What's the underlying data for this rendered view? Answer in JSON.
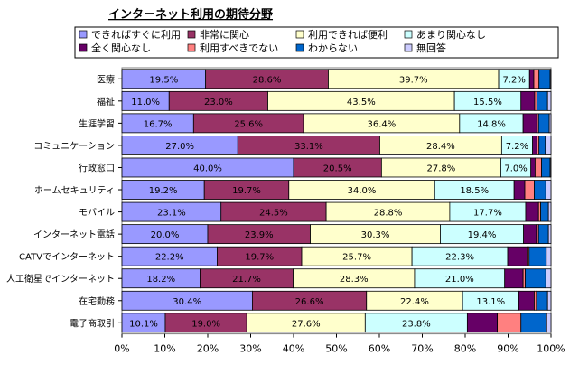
{
  "chart_data": {
    "type": "bar",
    "orientation": "horizontal",
    "stacked": true,
    "title": "インターネット利用の期待分野",
    "xlim": [
      0,
      100
    ],
    "x_tick_labels": [
      "0%",
      "10%",
      "20%",
      "30%",
      "40%",
      "50%",
      "60%",
      "70%",
      "80%",
      "90%",
      "100%"
    ],
    "legend_position": "top",
    "categories": [
      "医療",
      "福祉",
      "生涯学習",
      "コミュニケーション",
      "行政窓口",
      "ホームセキュリティ",
      "モバイル",
      "インターネット電話",
      "CATVでインターネット",
      "人工衛星でインターネット",
      "在宅勤務",
      "電子商取引"
    ],
    "series": [
      {
        "name": "できればすぐに利用",
        "color": "#9999ff",
        "values": [
          19.5,
          11.0,
          16.7,
          27.0,
          40.0,
          19.2,
          23.1,
          20.0,
          22.2,
          18.2,
          30.4,
          10.1
        ]
      },
      {
        "name": "非常に関心",
        "color": "#993366",
        "values": [
          28.6,
          23.0,
          25.6,
          33.1,
          20.5,
          19.7,
          24.5,
          23.9,
          19.7,
          21.7,
          26.6,
          19.0
        ]
      },
      {
        "name": "利用できれば便利",
        "color": "#ffffcc",
        "values": [
          39.7,
          43.5,
          36.4,
          28.4,
          27.8,
          34.0,
          28.8,
          30.3,
          25.7,
          28.3,
          22.4,
          27.6
        ]
      },
      {
        "name": "あまり関心なし",
        "color": "#ccffff",
        "values": [
          7.2,
          15.5,
          14.8,
          7.2,
          7.0,
          18.5,
          17.7,
          19.4,
          22.3,
          21.0,
          13.1,
          23.8
        ]
      },
      {
        "name": "全く関心なし",
        "color": "#660066",
        "values": [
          1.0,
          3.2,
          3.2,
          1.0,
          1.0,
          2.5,
          3.0,
          3.0,
          4.5,
          4.3,
          3.6,
          7.0
        ]
      },
      {
        "name": "利用すべきでない",
        "color": "#ff8080",
        "values": [
          1.2,
          0.5,
          0.4,
          0.5,
          1.5,
          2.2,
          0.5,
          0.5,
          0.5,
          0.5,
          0.5,
          5.5
        ]
      },
      {
        "name": "わからない",
        "color": "#0066cc",
        "values": [
          2.6,
          2.5,
          2.5,
          1.5,
          2.0,
          2.7,
          1.8,
          2.3,
          4.0,
          4.8,
          2.6,
          6.0
        ]
      },
      {
        "name": "無回答",
        "color": "#ccccff",
        "values": [
          0.2,
          0.8,
          0.4,
          1.3,
          0.2,
          1.2,
          0.6,
          0.6,
          1.1,
          1.2,
          0.8,
          1.0
        ]
      }
    ],
    "data_labels_series": [
      0,
      1,
      2,
      3
    ]
  }
}
